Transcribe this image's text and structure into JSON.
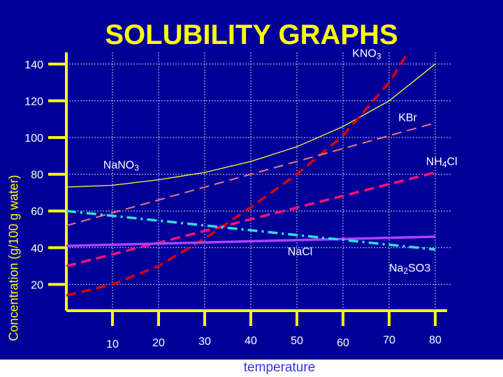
{
  "chart_data": {
    "type": "line",
    "title": "SOLUBILITY GRAPHS",
    "xlabel": "temperature",
    "ylabel": "Concentration (g/100 g water)",
    "x_ticks": [
      10,
      20,
      30,
      40,
      50,
      60,
      70,
      80
    ],
    "y_ticks": [
      20,
      40,
      60,
      80,
      100,
      120,
      140
    ],
    "xlim": [
      0,
      80
    ],
    "ylim": [
      0,
      140
    ],
    "grid": true,
    "series": [
      {
        "name": "NaNO3",
        "label_main": "NaNO",
        "label_sub": "3",
        "label_tail": "",
        "color": "#ffff33",
        "style": "solid",
        "label_x": 8,
        "label_y": 83,
        "x": [
          0,
          10,
          20,
          30,
          40,
          50,
          60,
          70,
          80
        ],
        "y": [
          73,
          74,
          77,
          81,
          87,
          95,
          106,
          120,
          140
        ]
      },
      {
        "name": "KNO3",
        "label_main": "KNO",
        "label_sub": "3",
        "label_tail": "",
        "color": "#dd0000",
        "style": "dash-bold",
        "label_x": 62,
        "label_y": 144,
        "x": [
          0,
          10,
          20,
          30,
          40,
          50,
          60,
          70,
          74
        ],
        "y": [
          14,
          20,
          30,
          45,
          62,
          80,
          101,
          130,
          146
        ]
      },
      {
        "name": "KBr",
        "label_main": "KBr",
        "label_sub": "",
        "label_tail": "",
        "color": "#ee7777",
        "style": "dash-thin",
        "label_x": 72,
        "label_y": 109,
        "x": [
          0,
          80
        ],
        "y": [
          52,
          108
        ]
      },
      {
        "name": "NH4Cl",
        "label_main": "NH",
        "label_sub": "4",
        "label_tail": "Cl",
        "color": "#ff1177",
        "style": "dash-bold",
        "label_x": 78,
        "label_y": 85,
        "x": [
          0,
          80
        ],
        "y": [
          30,
          81
        ]
      },
      {
        "name": "NaCl",
        "label_main": "NaCl",
        "label_sub": "",
        "label_tail": "",
        "color": "#aa44ff",
        "style": "solid-bold",
        "label_x": 48,
        "label_y": 36,
        "x": [
          0,
          80
        ],
        "y": [
          41,
          46
        ]
      },
      {
        "name": "Na2SO3",
        "label_main": "Na",
        "label_sub": "2",
        "label_tail": "SO3",
        "color": "#33dddd",
        "style": "dashdot",
        "label_x": 70,
        "label_y": 27,
        "x": [
          0,
          80
        ],
        "y": [
          60,
          39
        ]
      }
    ]
  }
}
